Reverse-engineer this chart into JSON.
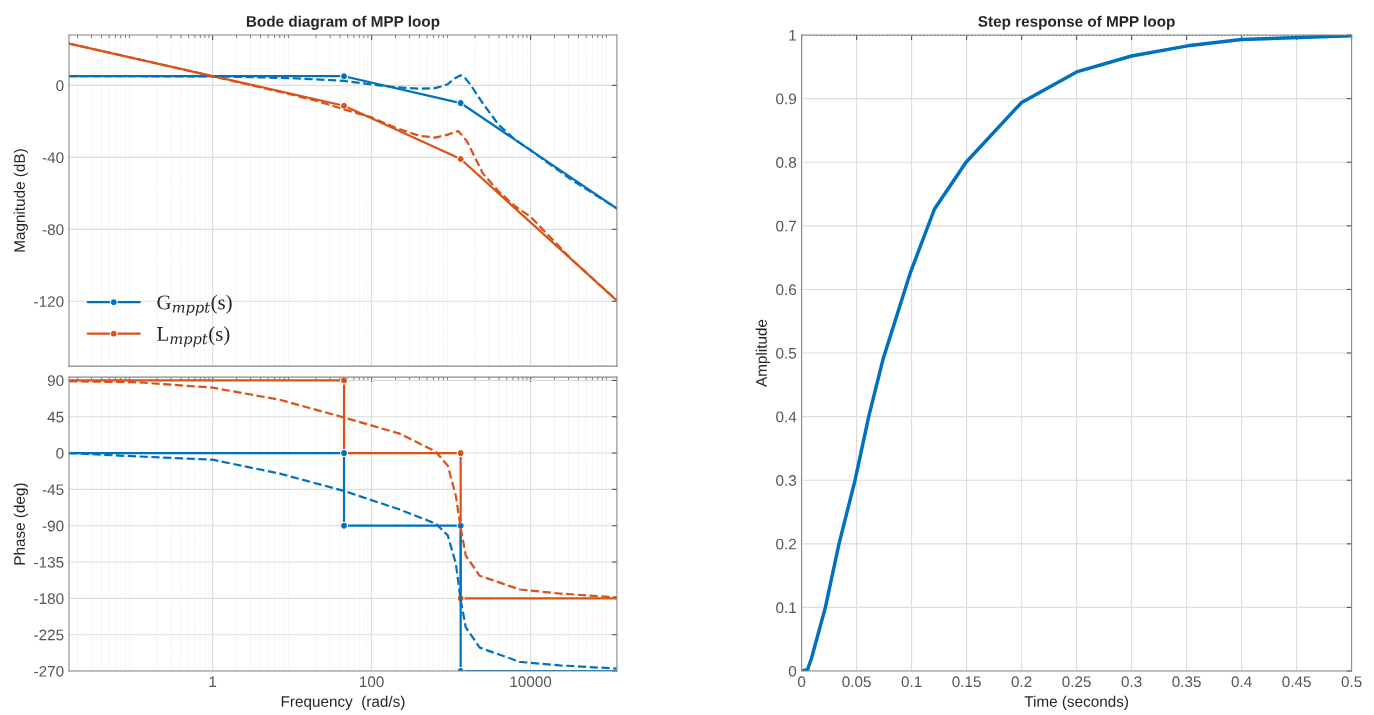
{
  "chart_data": [
    {
      "type": "line",
      "title": "Bode diagram of MPP loop",
      "ylabel": "Magnitude (dB)",
      "log": "x",
      "grid": true,
      "legend": "bottom left",
      "tick_labels": "y",
      "xlim": [
        0.0156,
        122000
      ],
      "xticks": [
        1,
        100,
        10000
      ],
      "ylim": [
        -156,
        28
      ],
      "yticks": [
        -120,
        -80,
        -40,
        0
      ],
      "series": [
        {
          "name": "G$_{mppt}$(s)",
          "color": "#0072bd",
          "marker": "circle",
          "line_style": "solid",
          "x": [
            0.0156,
            45,
            1320,
            122000
          ],
          "values": [
            5.1,
            5.1,
            -9.8,
            -68.4
          ]
        },
        {
          "name": "L$_{mppt}$(s)",
          "color": "#d95319",
          "marker": "circle",
          "line_style": "solid",
          "x": [
            0.0156,
            45,
            1320,
            122000
          ],
          "values": [
            23.3,
            -11.3,
            -40.9,
            -119.6
          ]
        },
        {
          "color": "#0072bd",
          "line_style": "dashed",
          "x": [
            0.0156,
            0.1,
            1,
            3.16,
            10,
            31.6,
            45,
            100,
            200,
            398,
            631,
            891,
            1122,
            1320,
            1479,
            1778,
            2512,
            3981,
            6310,
            10000,
            31623,
            122000
          ],
          "values": [
            5.1,
            5.1,
            5.0,
            4.6,
            4.0,
            2.9,
            2.5,
            0.5,
            -1.0,
            -1.8,
            -1.5,
            0.5,
            4.0,
            5.6,
            4.5,
            0,
            -10,
            -22,
            -30,
            -36,
            -52,
            -68.4
          ]
        },
        {
          "color": "#d95319",
          "line_style": "dashed",
          "x": [
            0.0156,
            0.1,
            1,
            10,
            20,
            45,
            100,
            200,
            398,
            631,
            891,
            1230,
            1585,
            2512,
            3981,
            6310,
            10000,
            31623,
            122000
          ],
          "values": [
            23.3,
            15.2,
            5.1,
            -5.2,
            -8.5,
            -13.3,
            -17.8,
            -23.5,
            -28,
            -29,
            -27.5,
            -25.3,
            -31,
            -49,
            -59,
            -67,
            -73,
            -96,
            -119.6
          ]
        }
      ]
    },
    {
      "type": "line",
      "xlabel": "Frequency  (rad/s)",
      "ylabel": "Phase (deg)",
      "log": "x",
      "grid": true,
      "xlim": [
        0.0156,
        122000
      ],
      "xticks": [
        1,
        100,
        10000
      ],
      "ylim": [
        -270,
        94
      ],
      "yticks": [
        -270,
        -225,
        -180,
        -135,
        -90,
        -45,
        0,
        45,
        90
      ],
      "series": [
        {
          "color": "#d95319",
          "marker": "circle",
          "line_style": "solid",
          "x": [
            0.0156,
            45,
            45,
            1320,
            1320,
            122000
          ],
          "values": [
            90,
            90,
            0,
            0,
            -180,
            -180
          ]
        },
        {
          "color": "#0072bd",
          "marker": "circle",
          "line_style": "solid",
          "x": [
            0.0156,
            45,
            45,
            1320,
            1320,
            122000
          ],
          "values": [
            0,
            0,
            -90,
            -90,
            -270,
            -270
          ]
        },
        {
          "color": "#0072bd",
          "line_style": "dashed",
          "x": [
            0.0156,
            0.068,
            1,
            7,
            45,
            226,
            641,
            908,
            1148,
            1320,
            1531,
            2291,
            7311,
            23280,
            122000
          ],
          "values": [
            0,
            -3.2,
            -8.2,
            -25.5,
            -46.9,
            -70,
            -87.5,
            -102,
            -137,
            -182,
            -216,
            -241,
            -258.6,
            -263,
            -267
          ]
        },
        {
          "color": "#d95319",
          "line_style": "dashed",
          "x": [
            0.0156,
            0.121,
            1,
            7,
            45,
            226,
            641,
            908,
            1148,
            1320,
            1531,
            2291,
            7311,
            23280,
            122000
          ],
          "values": [
            89,
            87.5,
            81,
            66,
            44,
            24,
            1.7,
            -15.6,
            -52.8,
            -92.5,
            -127,
            -152,
            -169,
            -174,
            -178.8
          ]
        }
      ]
    },
    {
      "type": "line",
      "title": "Step response of MPP loop",
      "xlabel": "Time (seconds)",
      "ylabel": "Amplitude",
      "grid": true,
      "xlim": [
        0,
        0.5
      ],
      "xticks": [
        0,
        0.05,
        0.1,
        0.15,
        0.2,
        0.25,
        0.3,
        0.35,
        0.4,
        0.45,
        0.5
      ],
      "ylim": [
        0,
        1
      ],
      "yticks": [
        0,
        0.1,
        0.2,
        0.3,
        0.4,
        0.5,
        0.6,
        0.7,
        0.8,
        0.9,
        1
      ],
      "ref_lines": [
        {
          "axis": "y",
          "value": 1,
          "color": "#404040",
          "line_style": "dotted"
        }
      ],
      "series": [
        {
          "color": "#0072bd",
          "line_style": "solid",
          "x": [
            0,
            0.0054,
            0.009,
            0.0216,
            0.034,
            0.0486,
            0.061,
            0.074,
            0.099,
            0.1207,
            0.1495,
            0.2,
            0.25,
            0.3,
            0.351,
            0.4,
            0.5
          ],
          "values": [
            0,
            0.002,
            0.02,
            0.1,
            0.2,
            0.3,
            0.4,
            0.49,
            0.627,
            0.726,
            0.8,
            0.894,
            0.942,
            0.967,
            0.983,
            0.993,
            0.999
          ]
        }
      ]
    }
  ]
}
